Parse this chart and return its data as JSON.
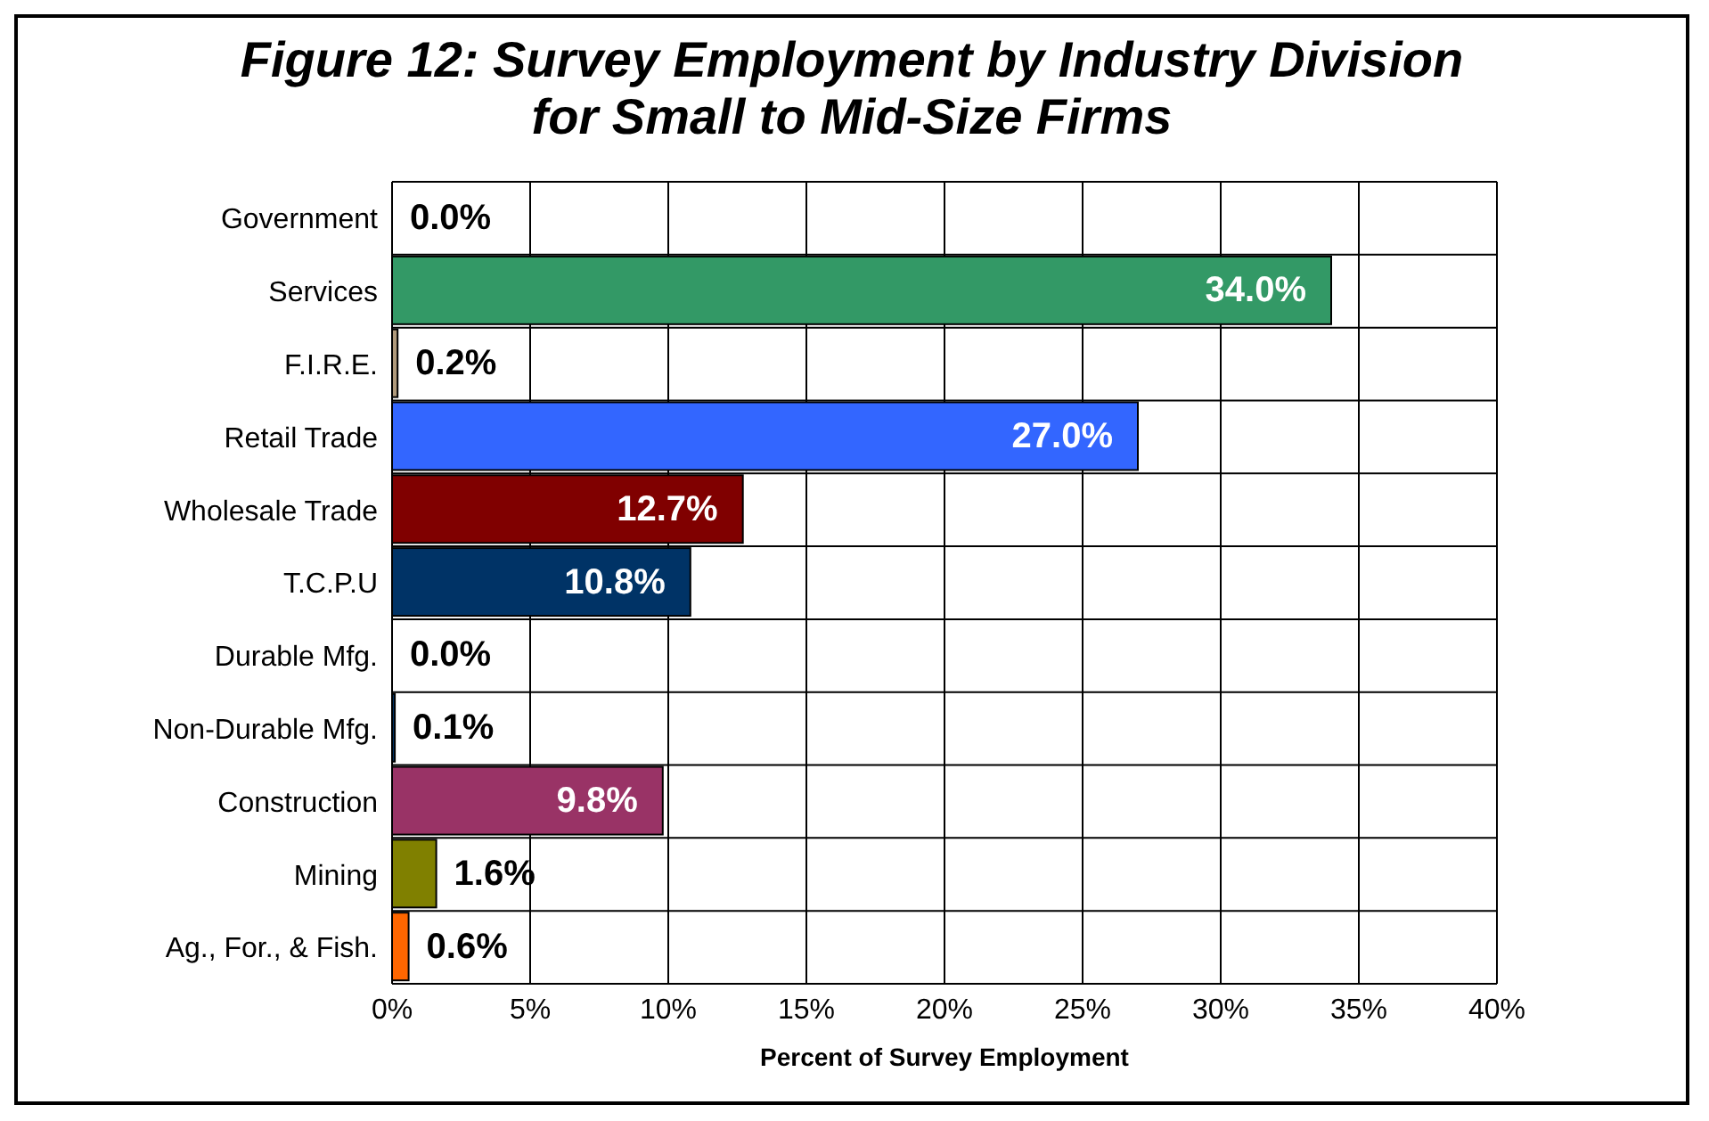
{
  "chart_data": {
    "type": "bar",
    "orientation": "horizontal",
    "title": "Figure 12: Survey Employment by Industry Division for Small to Mid-Size Firms",
    "xlabel": "Percent of Survey Employment",
    "categories": [
      "Government",
      "Services",
      "F.I.R.E.",
      "Retail Trade",
      "Wholesale Trade",
      "T.C.P.U",
      "Durable Mfg.",
      "Non-Durable Mfg.",
      "Construction",
      "Mining",
      "Ag., For., & Fish."
    ],
    "values": [
      0,
      34.0,
      0.2,
      27.0,
      12.7,
      10.8,
      0,
      0.1,
      9.8,
      1.6,
      0.6
    ],
    "colors": [
      "#ffffff",
      "#339966",
      "#b09a7c",
      "#3366ff",
      "#800000",
      "#003366",
      "#ffffff",
      "#003366",
      "#993366",
      "#808000",
      "#ff6600"
    ],
    "value_labels": [
      "0.0%",
      "34.0%",
      "0.2%",
      "27.0%",
      "12.7%",
      "10.8%",
      "0.0%",
      "0.1%",
      "9.8%",
      "1.6%",
      "0.6%"
    ],
    "xlim": [
      0,
      40
    ],
    "xticks": [
      {
        "value": 0,
        "label": "0%"
      },
      {
        "value": 5,
        "label": "5%"
      },
      {
        "value": 10,
        "label": "10%"
      },
      {
        "value": 15,
        "label": "15%"
      },
      {
        "value": 20,
        "label": "20%"
      },
      {
        "value": 25,
        "label": "25%"
      },
      {
        "value": 30,
        "label": "30%"
      },
      {
        "value": 35,
        "label": "35%"
      },
      {
        "value": 40,
        "label": "40%"
      }
    ],
    "grid": true,
    "legend": false
  }
}
